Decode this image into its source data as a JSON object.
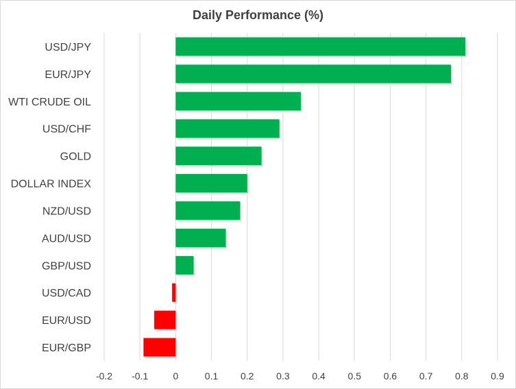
{
  "chart_data": {
    "type": "bar",
    "orientation": "horizontal",
    "title": "Daily Performance  (%)",
    "xlabel": "",
    "ylabel": "",
    "xlim": [
      -0.2,
      0.9
    ],
    "x_ticks": [
      "-0.2",
      "-0.1",
      "0",
      "0.1",
      "0.2",
      "0.3",
      "0.4",
      "0.5",
      "0.6",
      "0.7",
      "0.8",
      "0.9"
    ],
    "grid": "vertical",
    "legend": "none",
    "categories": [
      "USD/JPY",
      "EUR/JPY",
      "WTI CRUDE OIL",
      "USD/CHF",
      "GOLD",
      "DOLLAR INDEX",
      "NZD/USD",
      "AUD/USD",
      "GBP/USD",
      "USD/CAD",
      "EUR/USD",
      "EUR/GBP"
    ],
    "values": [
      0.81,
      0.77,
      0.35,
      0.29,
      0.24,
      0.2,
      0.18,
      0.14,
      0.05,
      -0.01,
      -0.06,
      -0.09
    ],
    "colors": {
      "positive": "#00b050",
      "negative": "#ff0000",
      "grid": "#d9d9d9",
      "text": "#404040"
    }
  }
}
